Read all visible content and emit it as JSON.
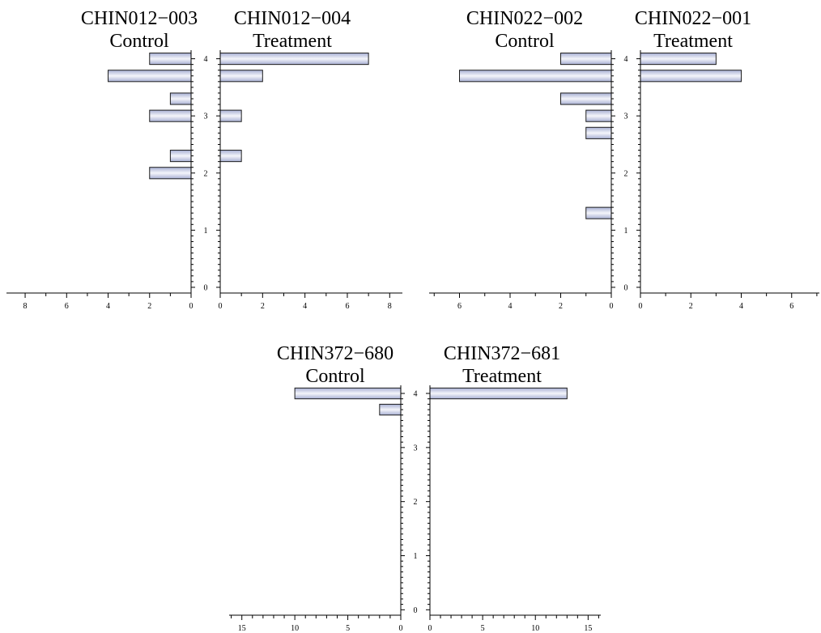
{
  "chart_data": {
    "type": "bar",
    "orientation": "horizontal",
    "layout": "back-to-back pyramid pairs",
    "colors": {
      "bar_fill_edge": "#a8b0d4",
      "bar_fill_center": "#f4f5fa",
      "bar_stroke": "#1e1e1e"
    },
    "panels": [
      {
        "left": {
          "id": "CHIN012-003",
          "group": "Control",
          "xlim": [
            0,
            8.9
          ],
          "xticks": [
            0,
            2,
            4,
            6,
            8
          ],
          "bars": [
            {
              "y": 4.0,
              "value": 2
            },
            {
              "y": 3.7,
              "value": 4
            },
            {
              "y": 3.3,
              "value": 1
            },
            {
              "y": 3.0,
              "value": 2
            },
            {
              "y": 2.3,
              "value": 1
            },
            {
              "y": 2.0,
              "value": 2
            }
          ]
        },
        "right": {
          "id": "CHIN012-004",
          "group": "Treatment",
          "xlim": [
            0,
            8.6
          ],
          "xticks": [
            0,
            2,
            4,
            6,
            8
          ],
          "bars": [
            {
              "y": 4.0,
              "value": 7
            },
            {
              "y": 3.7,
              "value": 2
            },
            {
              "y": 3.0,
              "value": 1
            },
            {
              "y": 2.3,
              "value": 1
            }
          ]
        },
        "ylim": [
          -0.1,
          4.15
        ],
        "yticks": [
          0,
          1,
          2,
          3,
          4
        ],
        "yminor_step": 0.1
      },
      {
        "left": {
          "id": "CHIN022-002",
          "group": "Control",
          "xlim": [
            0,
            7.2
          ],
          "xticks": [
            0,
            2,
            4,
            6
          ],
          "bars": [
            {
              "y": 4.0,
              "value": 2
            },
            {
              "y": 3.7,
              "value": 6
            },
            {
              "y": 3.3,
              "value": 2
            },
            {
              "y": 3.0,
              "value": 1
            },
            {
              "y": 2.7,
              "value": 1
            },
            {
              "y": 1.3,
              "value": 1
            }
          ]
        },
        "right": {
          "id": "CHIN022-001",
          "group": "Treatment",
          "xlim": [
            0,
            7.1
          ],
          "xticks": [
            0,
            2,
            4,
            6
          ],
          "bars": [
            {
              "y": 4.0,
              "value": 3
            },
            {
              "y": 3.7,
              "value": 4
            }
          ]
        },
        "ylim": [
          -0.1,
          4.15
        ],
        "yticks": [
          0,
          1,
          2,
          3,
          4
        ],
        "yminor_step": 0.1
      },
      {
        "left": {
          "id": "CHIN372-680",
          "group": "Control",
          "xlim": [
            0,
            16.2
          ],
          "xticks": [
            0,
            5,
            10,
            15
          ],
          "bars": [
            {
              "y": 4.0,
              "value": 10
            },
            {
              "y": 3.7,
              "value": 2
            }
          ]
        },
        "right": {
          "id": "CHIN372-681",
          "group": "Treatment",
          "xlim": [
            0,
            16.2
          ],
          "xticks": [
            0,
            5,
            10,
            15
          ],
          "bars": [
            {
              "y": 4.0,
              "value": 13
            }
          ]
        },
        "ylim": [
          -0.1,
          4.15
        ],
        "yticks": [
          0,
          1,
          2,
          3,
          4
        ],
        "yminor_step": 0.1
      }
    ]
  }
}
